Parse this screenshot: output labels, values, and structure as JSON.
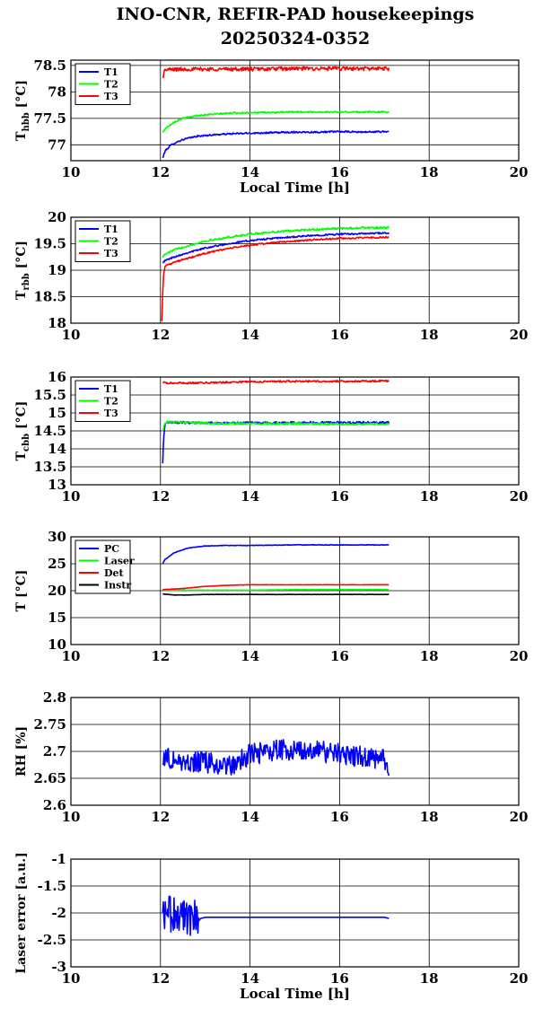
{
  "figure": {
    "title_line1": "INO-CNR, REFIR-PAD housekeepings",
    "title_line2": "20250324-0352"
  },
  "chart_data": [
    {
      "type": "line",
      "ylabel_main": "T",
      "ylabel_sub": "hbb",
      "ylabel_unit": " [°C]",
      "xlabel": "Local Time [h]",
      "xlim": [
        10,
        20
      ],
      "xticks": [
        10,
        12,
        14,
        16,
        18,
        20
      ],
      "xtick_labels": [
        "10",
        "12",
        "14",
        "16",
        "18",
        "20"
      ],
      "ylim": [
        76.7,
        78.6
      ],
      "yticks": [
        77,
        77.5,
        78,
        78.5
      ],
      "ytick_labels": [
        "77",
        "77.5",
        "78",
        "78.5"
      ],
      "grid": true,
      "legend": "top-left",
      "series": [
        {
          "name": "T1",
          "color": "#0000ff",
          "x": [
            12.05,
            12.1,
            12.2,
            12.3,
            12.5,
            12.8,
            13.2,
            13.6,
            14,
            14.5,
            15,
            15.5,
            16,
            16.5,
            17,
            17.1
          ],
          "y": [
            76.75,
            76.88,
            76.97,
            77.03,
            77.1,
            77.16,
            77.19,
            77.21,
            77.22,
            77.23,
            77.24,
            77.24,
            77.25,
            77.24,
            77.25,
            77.25
          ],
          "noise": 0.015
        },
        {
          "name": "T2",
          "color": "#00ff00",
          "x": [
            12.05,
            12.1,
            12.2,
            12.3,
            12.5,
            12.8,
            13.2,
            13.6,
            14,
            14.5,
            15,
            15.5,
            16,
            16.5,
            17,
            17.1
          ],
          "y": [
            77.23,
            77.3,
            77.37,
            77.43,
            77.5,
            77.55,
            77.58,
            77.6,
            77.61,
            77.61,
            77.62,
            77.62,
            77.62,
            77.62,
            77.62,
            77.62
          ],
          "noise": 0.015
        },
        {
          "name": "T3",
          "color": "#ff0000",
          "x": [
            12.05,
            12.08,
            12.12,
            12.5,
            13,
            14,
            15,
            16,
            17,
            17.1
          ],
          "y": [
            78.25,
            78.38,
            78.42,
            78.43,
            78.43,
            78.43,
            78.44,
            78.44,
            78.44,
            78.44
          ],
          "noise": 0.035
        }
      ]
    },
    {
      "type": "line",
      "ylabel_main": "T",
      "ylabel_sub": "rbb",
      "ylabel_unit": " [°C]",
      "xlabel": "",
      "xlim": [
        10,
        20
      ],
      "xticks": [
        10,
        12,
        14,
        16,
        18,
        20
      ],
      "xtick_labels": [
        "10",
        "12",
        "14",
        "16",
        "18",
        "20"
      ],
      "ylim": [
        18,
        20
      ],
      "yticks": [
        18,
        18.5,
        19,
        19.5,
        20
      ],
      "ytick_labels": [
        "18",
        "18.5",
        "19",
        "19.5",
        "20"
      ],
      "grid": true,
      "legend": "top-left",
      "series": [
        {
          "name": "T1",
          "color": "#0000ff",
          "x": [
            12.05,
            12.1,
            12.3,
            12.6,
            13,
            13.5,
            14,
            14.5,
            15,
            15.5,
            16,
            16.5,
            17,
            17.1
          ],
          "y": [
            19.15,
            19.18,
            19.25,
            19.33,
            19.42,
            19.5,
            19.56,
            19.6,
            19.63,
            19.66,
            19.68,
            19.69,
            19.7,
            19.7
          ],
          "noise": 0.015
        },
        {
          "name": "T2",
          "color": "#00ff00",
          "x": [
            12.05,
            12.1,
            12.3,
            12.6,
            13,
            13.5,
            14,
            14.5,
            15,
            15.5,
            16,
            16.5,
            17,
            17.1
          ],
          "y": [
            19.25,
            19.3,
            19.38,
            19.46,
            19.55,
            19.62,
            19.68,
            19.72,
            19.75,
            19.77,
            19.79,
            19.8,
            19.8,
            19.8
          ],
          "noise": 0.018
        },
        {
          "name": "T3",
          "color": "#ff0000",
          "x": [
            12.03,
            12.05,
            12.07,
            12.1,
            12.3,
            12.6,
            13,
            13.5,
            14,
            14.5,
            15,
            15.5,
            16,
            16.5,
            17,
            17.1
          ],
          "y": [
            18.05,
            18.6,
            18.9,
            19.08,
            19.15,
            19.22,
            19.32,
            19.41,
            19.47,
            19.52,
            19.55,
            19.58,
            19.6,
            19.61,
            19.62,
            19.62
          ],
          "noise": 0.015
        }
      ]
    },
    {
      "type": "line",
      "ylabel_main": "T",
      "ylabel_sub": "cbb",
      "ylabel_unit": " [°C]",
      "xlabel": "",
      "xlim": [
        10,
        20
      ],
      "xticks": [
        10,
        12,
        14,
        16,
        18,
        20
      ],
      "xtick_labels": [
        "10",
        "12",
        "14",
        "16",
        "18",
        "20"
      ],
      "ylim": [
        13,
        16
      ],
      "yticks": [
        13,
        13.5,
        14,
        14.5,
        15,
        15.5,
        16
      ],
      "ytick_labels": [
        "13",
        "13.5",
        "14",
        "14.5",
        "15",
        "15.5",
        "16"
      ],
      "grid": true,
      "legend": "top-left",
      "series": [
        {
          "name": "T1",
          "color": "#0000ff",
          "x": [
            12.05,
            12.07,
            12.1,
            12.15,
            13,
            14,
            15,
            16,
            17,
            17.1
          ],
          "y": [
            13.6,
            14.3,
            14.7,
            14.74,
            14.72,
            14.72,
            14.73,
            14.73,
            14.73,
            14.73
          ],
          "noise": 0.03
        },
        {
          "name": "T2",
          "color": "#00ff00",
          "x": [
            12.05,
            12.1,
            12.15,
            13,
            14,
            15,
            16,
            17,
            17.1
          ],
          "y": [
            14.5,
            14.73,
            14.75,
            14.72,
            14.7,
            14.7,
            14.69,
            14.69,
            14.69
          ],
          "noise": 0.03
        },
        {
          "name": "T3",
          "color": "#ff0000",
          "x": [
            12.05,
            12.15,
            13,
            14,
            15,
            16,
            17,
            17.1
          ],
          "y": [
            15.85,
            15.83,
            15.84,
            15.87,
            15.88,
            15.88,
            15.89,
            15.89
          ],
          "noise": 0.025
        }
      ]
    },
    {
      "type": "line",
      "ylabel_main": "T [°C]",
      "ylabel_sub": "",
      "ylabel_unit": "",
      "xlabel": "",
      "xlim": [
        10,
        20
      ],
      "xticks": [
        10,
        12,
        14,
        16,
        18,
        20
      ],
      "xtick_labels": [
        "10",
        "12",
        "14",
        "16",
        "18",
        "20"
      ],
      "ylim": [
        10,
        30
      ],
      "yticks": [
        10,
        15,
        20,
        25,
        30
      ],
      "ytick_labels": [
        "10",
        "15",
        "20",
        "25",
        "30"
      ],
      "grid": true,
      "legend": "top-left",
      "series": [
        {
          "name": "PC",
          "color": "#0000ff",
          "x": [
            12.05,
            12.1,
            12.3,
            12.6,
            13,
            13.5,
            14,
            15,
            16,
            17,
            17.1
          ],
          "y": [
            25,
            25.8,
            27,
            27.9,
            28.3,
            28.4,
            28.4,
            28.5,
            28.5,
            28.5,
            28.5
          ],
          "noise": 0.05
        },
        {
          "name": "Laser",
          "color": "#00ff00",
          "x": [
            12.05,
            12.5,
            13,
            14,
            15,
            16,
            17,
            17.1
          ],
          "y": [
            20.1,
            20.1,
            20.1,
            20.1,
            20.2,
            20.2,
            20.2,
            20.2
          ],
          "noise": 0.02
        },
        {
          "name": "Det",
          "color": "#ff0000",
          "x": [
            12.05,
            12.5,
            13,
            13.5,
            14,
            15,
            16,
            17,
            17.1
          ],
          "y": [
            20.2,
            20.4,
            20.8,
            21,
            21.1,
            21.1,
            21.1,
            21.1,
            21.1
          ],
          "noise": 0.02
        },
        {
          "name": "Instr",
          "color": "#000000",
          "x": [
            12.05,
            12.3,
            12.6,
            13,
            14,
            15,
            16,
            17,
            17.1
          ],
          "y": [
            19.4,
            19.2,
            19.2,
            19.3,
            19.3,
            19.3,
            19.3,
            19.3,
            19.3
          ],
          "noise": 0.02
        }
      ]
    },
    {
      "type": "line",
      "ylabel_main": "RH [%]",
      "ylabel_sub": "",
      "ylabel_unit": "",
      "xlabel": "",
      "xlim": [
        10,
        20
      ],
      "xticks": [
        10,
        12,
        14,
        16,
        18,
        20
      ],
      "xtick_labels": [
        "10",
        "12",
        "14",
        "16",
        "18",
        "20"
      ],
      "ylim": [
        2.6,
        2.8
      ],
      "yticks": [
        2.6,
        2.65,
        2.7,
        2.75,
        2.8
      ],
      "ytick_labels": [
        "2.6",
        "2.65",
        "2.7",
        "2.75",
        "2.8"
      ],
      "grid": true,
      "legend": "none",
      "series": [
        {
          "name": "",
          "color": "#0000ff",
          "x": [
            12.05,
            12.5,
            13,
            13.5,
            14,
            14.5,
            15,
            15.5,
            16,
            16.5,
            17,
            17.1
          ],
          "y": [
            2.69,
            2.68,
            2.68,
            2.67,
            2.695,
            2.7,
            2.705,
            2.7,
            2.695,
            2.69,
            2.685,
            2.66
          ],
          "noise": 0.02
        }
      ]
    },
    {
      "type": "line",
      "ylabel_main": "Laser error [a.u.]",
      "ylabel_sub": "",
      "ylabel_unit": "",
      "xlabel": "Local Time [h]",
      "xlim": [
        10,
        20
      ],
      "xticks": [
        10,
        12,
        14,
        16,
        18,
        20
      ],
      "xtick_labels": [
        "10",
        "12",
        "14",
        "16",
        "18",
        "20"
      ],
      "ylim": [
        -3,
        -1
      ],
      "yticks": [
        -3,
        -2.5,
        -2,
        -1.5,
        -1
      ],
      "ytick_labels": [
        "-3",
        "-2.5",
        "-2",
        "-1.5",
        "-1"
      ],
      "grid": true,
      "legend": "none",
      "series": [
        {
          "name": "",
          "color": "#0000ff",
          "x": [
            12.05,
            12.2,
            12.4,
            12.6,
            12.75,
            12.85,
            12.9,
            13,
            14,
            15,
            16,
            17,
            17.1
          ],
          "y": [
            -2.05,
            -2.0,
            -2.05,
            -2.1,
            -2.05,
            -2.15,
            -2.1,
            -2.08,
            -2.08,
            -2.08,
            -2.08,
            -2.08,
            -2.1
          ],
          "noise": 0.0,
          "burst_until": 12.85,
          "burst_amp": 0.35
        }
      ]
    }
  ]
}
